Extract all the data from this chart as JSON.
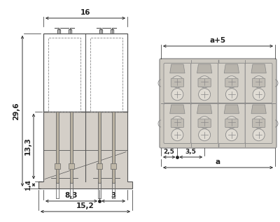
{
  "bg_color": "#ffffff",
  "lc": "#888888",
  "lc_dark": "#555555",
  "dc": "#222222",
  "fill_body": "#d4cfc8",
  "fill_pin": "#c8c0b0",
  "fill_hatch": "#c8c0b0",
  "fig_w": 4.0,
  "fig_h": 3.18,
  "dpi": 100,
  "fs": 7.5,
  "fs_sm": 6.5,
  "dim_lw": 0.65
}
